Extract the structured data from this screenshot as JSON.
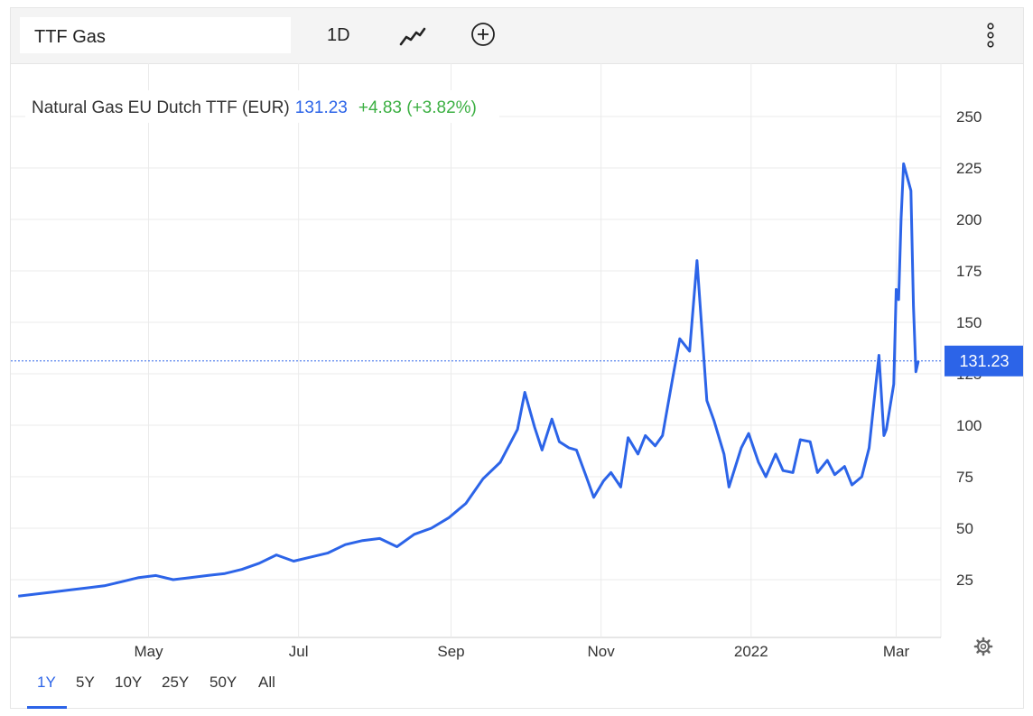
{
  "toolbar": {
    "symbol": "TTF Gas",
    "interval_label": "1D",
    "chart_type_icon": "line-chart-icon",
    "add_icon": "plus-circle-icon",
    "menu_icon": "kebab-menu-icon"
  },
  "legend": {
    "name": "Natural Gas EU Dutch TTF (EUR)",
    "last": "131.23",
    "change": "+4.83 (+3.82%)"
  },
  "price_tag": "131.23",
  "settings_icon": "gear-icon",
  "ranges": [
    {
      "label": "1Y",
      "active": true
    },
    {
      "label": "5Y",
      "active": false
    },
    {
      "label": "10Y",
      "active": false
    },
    {
      "label": "25Y",
      "active": false
    },
    {
      "label": "50Y",
      "active": false
    },
    {
      "label": "All",
      "active": false
    }
  ],
  "colors": {
    "line": "#2c64e8",
    "positive": "#3cb043",
    "grid": "#ebebeb"
  },
  "chart_data": {
    "type": "line",
    "series": [
      {
        "name": "Natural Gas EU Dutch TTF (EUR)",
        "x": [
          "2021-03-09",
          "2021-03-16",
          "2021-03-23",
          "2021-03-30",
          "2021-04-06",
          "2021-04-13",
          "2021-04-20",
          "2021-04-27",
          "2021-05-04",
          "2021-05-11",
          "2021-05-18",
          "2021-05-25",
          "2021-06-01",
          "2021-06-08",
          "2021-06-15",
          "2021-06-22",
          "2021-06-29",
          "2021-07-06",
          "2021-07-13",
          "2021-07-20",
          "2021-07-27",
          "2021-08-03",
          "2021-08-10",
          "2021-08-17",
          "2021-08-24",
          "2021-08-31",
          "2021-09-07",
          "2021-09-14",
          "2021-09-21",
          "2021-09-28",
          "2021-10-01",
          "2021-10-05",
          "2021-10-08",
          "2021-10-12",
          "2021-10-15",
          "2021-10-19",
          "2021-10-22",
          "2021-10-26",
          "2021-10-29",
          "2021-11-02",
          "2021-11-05",
          "2021-11-09",
          "2021-11-12",
          "2021-11-16",
          "2021-11-19",
          "2021-11-23",
          "2021-11-26",
          "2021-11-30",
          "2021-12-03",
          "2021-12-07",
          "2021-12-10",
          "2021-12-14",
          "2021-12-17",
          "2021-12-21",
          "2021-12-23",
          "2021-12-28",
          "2021-12-31",
          "2022-01-04",
          "2022-01-07",
          "2022-01-11",
          "2022-01-14",
          "2022-01-18",
          "2022-01-21",
          "2022-01-25",
          "2022-01-28",
          "2022-02-01",
          "2022-02-04",
          "2022-02-08",
          "2022-02-11",
          "2022-02-15",
          "2022-02-18",
          "2022-02-22",
          "2022-02-24",
          "2022-02-25",
          "2022-02-28",
          "2022-03-01",
          "2022-03-02",
          "2022-03-03",
          "2022-03-04",
          "2022-03-07",
          "2022-03-08",
          "2022-03-09",
          "2022-03-10"
        ],
        "y": [
          17,
          18,
          19,
          20,
          21,
          22,
          24,
          26,
          27,
          25,
          26,
          27,
          28,
          30,
          33,
          37,
          34,
          36,
          38,
          42,
          44,
          45,
          41,
          47,
          50,
          55,
          62,
          74,
          82,
          98,
          116,
          99,
          88,
          103,
          92,
          89,
          88,
          75,
          65,
          73,
          77,
          70,
          94,
          86,
          95,
          90,
          95,
          122,
          142,
          136,
          180,
          112,
          102,
          86,
          70,
          89,
          96,
          82,
          75,
          86,
          78,
          77,
          93,
          92,
          77,
          83,
          76,
          80,
          71,
          75,
          89,
          134,
          95,
          98,
          120,
          166,
          161,
          200,
          227,
          214,
          158,
          126,
          131.23
        ]
      }
    ],
    "x_ticks": [
      "May",
      "Jul",
      "Sep",
      "Nov",
      "2022",
      "Mar"
    ],
    "y_ticks": [
      25,
      50,
      75,
      100,
      125,
      150,
      175,
      200,
      225,
      250
    ],
    "ylim": [
      0,
      260
    ],
    "last_value": 131.23,
    "grid": true
  }
}
